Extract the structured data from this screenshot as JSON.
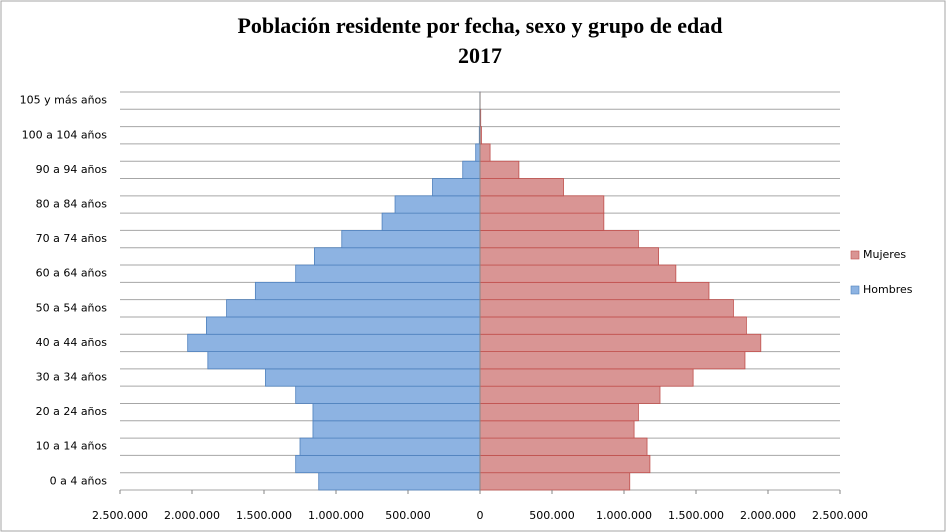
{
  "chart_data": {
    "type": "pyramid",
    "title": "Población residente por fecha, sexo y grupo de edad",
    "subtitle": "2017",
    "categories": [
      "0 a 4 años",
      null,
      "10 a 14 años",
      null,
      "20 a 24 años",
      null,
      "30 a 34 años",
      null,
      "40 a 44 años",
      null,
      "50 a 54 años",
      null,
      "60 a 64 años",
      null,
      "70 a 74 años",
      null,
      "80 a 84 años",
      null,
      "90 a 94 años",
      null,
      "100 a 104 años",
      null,
      "105 y más años"
    ],
    "series": [
      {
        "name": "Mujeres",
        "color": "#d99594",
        "side": "right",
        "values": [
          1040000,
          1180000,
          1160000,
          1070000,
          1100000,
          1250000,
          1480000,
          1840000,
          1950000,
          1850000,
          1760000,
          1590000,
          1360000,
          1240000,
          1100000,
          860000,
          860000,
          580000,
          270000,
          70000,
          10000,
          5000,
          1000
        ]
      },
      {
        "name": "Hombres",
        "color": "#8db3e2",
        "side": "left",
        "values": [
          1120000,
          1280000,
          1250000,
          1160000,
          1160000,
          1280000,
          1490000,
          1890000,
          2030000,
          1900000,
          1760000,
          1560000,
          1280000,
          1150000,
          960000,
          680000,
          590000,
          330000,
          120000,
          30000,
          5000,
          2000,
          1000
        ]
      }
    ],
    "xlim": [
      -2500000,
      2500000
    ],
    "xticks": [
      {
        "value": -2500000,
        "label": "2.500.000"
      },
      {
        "value": -2000000,
        "label": "2.000.000"
      },
      {
        "value": -1500000,
        "label": "1.500.000"
      },
      {
        "value": -1000000,
        "label": "1.000.000"
      },
      {
        "value": -500000,
        "label": "500.000"
      },
      0,
      {
        "value": 500000,
        "label": "500.000"
      },
      {
        "value": 1000000,
        "label": "1.000.000"
      },
      {
        "value": 1500000,
        "label": "1.500.000"
      },
      {
        "value": 2000000,
        "label": "2.000.000"
      },
      {
        "value": 2500000,
        "label": "2.500.000"
      }
    ],
    "grid": true,
    "legend": "right"
  }
}
